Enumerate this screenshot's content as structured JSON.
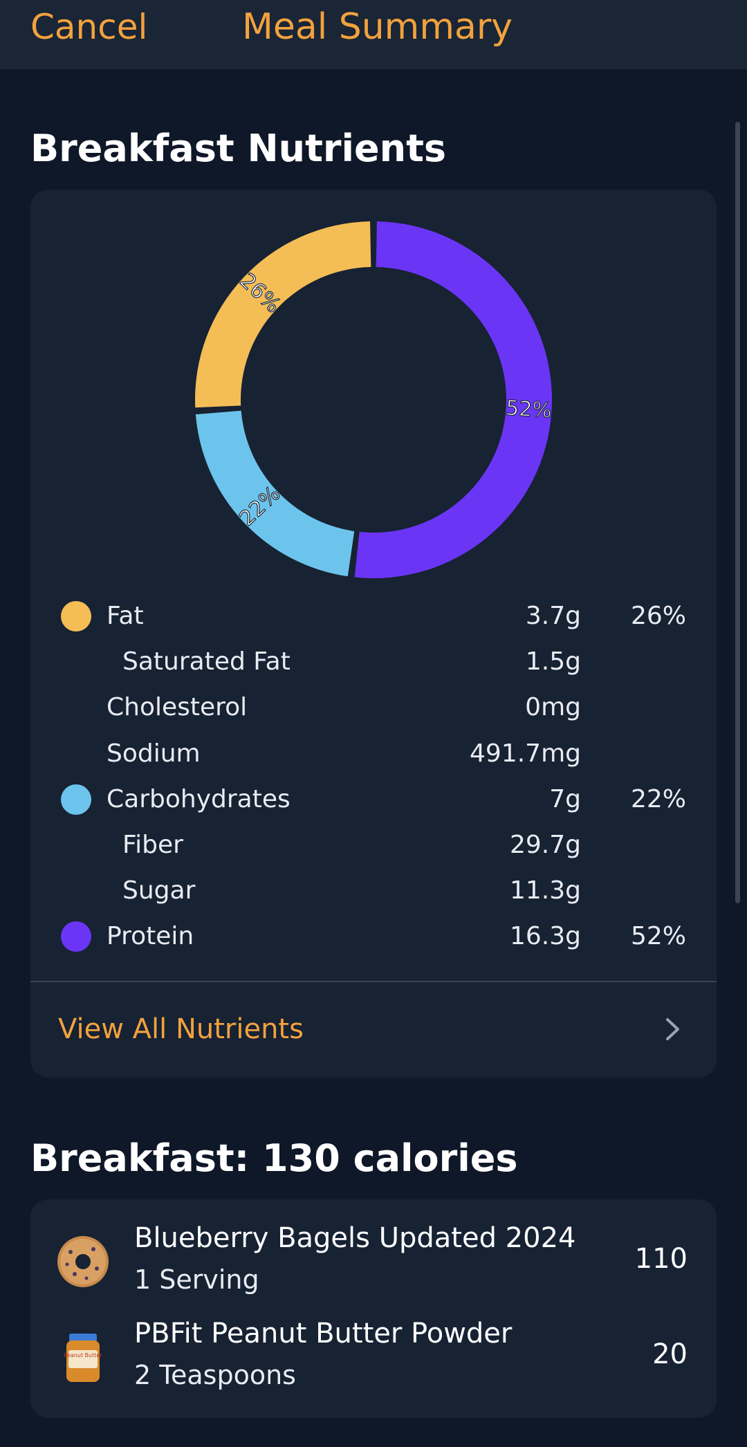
{
  "nav": {
    "cancel_label": "Cancel",
    "title": "Meal Summary"
  },
  "nutrients_section": {
    "title": "Breakfast Nutrients",
    "view_all_label": "View All Nutrients"
  },
  "chart_data": {
    "type": "pie",
    "slices": [
      {
        "label": "Protein",
        "value": 52,
        "display": "52%",
        "color": "#6b35f5"
      },
      {
        "label": "Carbohydrates",
        "value": 22,
        "display": "22%",
        "color": "#6cc4ec"
      },
      {
        "label": "Fat",
        "value": 26,
        "display": "26%",
        "color": "#f5bd55"
      }
    ]
  },
  "nutrients": [
    {
      "label": "Fat",
      "amount": "3.7g",
      "pct": "26%",
      "color": "#f5bd55",
      "indent": false
    },
    {
      "label": "Saturated Fat",
      "amount": "1.5g",
      "pct": "",
      "color": "",
      "indent": true
    },
    {
      "label": "Cholesterol",
      "amount": "0mg",
      "pct": "",
      "color": "",
      "indent": false
    },
    {
      "label": "Sodium",
      "amount": "491.7mg",
      "pct": "",
      "color": "",
      "indent": false
    },
    {
      "label": "Carbohydrates",
      "amount": "7g",
      "pct": "22%",
      "color": "#6cc4ec",
      "indent": false
    },
    {
      "label": "Fiber",
      "amount": "29.7g",
      "pct": "",
      "color": "",
      "indent": true
    },
    {
      "label": "Sugar",
      "amount": "11.3g",
      "pct": "",
      "color": "",
      "indent": true
    },
    {
      "label": "Protein",
      "amount": "16.3g",
      "pct": "52%",
      "color": "#6b35f5",
      "indent": false
    }
  ],
  "meal_section": {
    "title": "Breakfast: 130 calories"
  },
  "foods": [
    {
      "name": "Blueberry Bagels Updated 2024",
      "serving": "1 Serving",
      "calories": "110",
      "icon": "bagel-icon"
    },
    {
      "name": "PBFit Peanut Butter Powder",
      "serving": "2 Teaspoons",
      "calories": "20",
      "icon": "peanut-butter-jar-icon",
      "icon_label": "Peanut Butter"
    }
  ]
}
